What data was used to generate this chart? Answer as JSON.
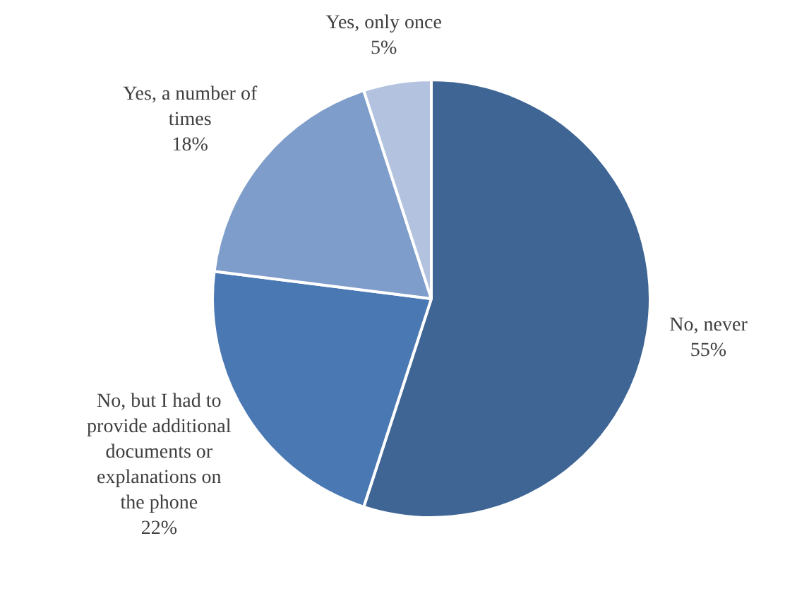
{
  "chart_data": {
    "type": "pie",
    "categories": [
      "No, never",
      "No, but I had to provide additional documents or explanations on the phone",
      "Yes, a number of times",
      "Yes, only once"
    ],
    "values": [
      55,
      22,
      18,
      5
    ],
    "colors": [
      "#3f6595",
      "#4a78b3",
      "#7f9dca",
      "#b3c3df"
    ],
    "value_labels": [
      "55%",
      "22%",
      "18%",
      "5%"
    ]
  }
}
